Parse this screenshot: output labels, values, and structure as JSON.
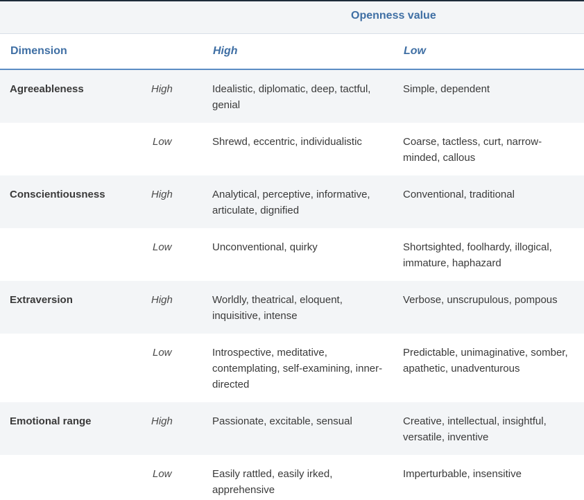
{
  "table": {
    "group_header": "Openness value",
    "columns": {
      "dimension": "Dimension",
      "high": "High",
      "low": "Low"
    },
    "rows": [
      {
        "dimension": "Agreeableness",
        "level": "High",
        "high": "Idealistic, diplomatic, deep, tactful, genial",
        "low": "Simple, dependent"
      },
      {
        "dimension": "",
        "level": "Low",
        "high": "Shrewd, eccentric, individualistic",
        "low": "Coarse, tactless, curt, narrow-minded, callous"
      },
      {
        "dimension": "Conscientiousness",
        "level": "High",
        "high": "Analytical, perceptive, informative, articulate, dignified",
        "low": "Conventional, traditional"
      },
      {
        "dimension": "",
        "level": "Low",
        "high": "Unconventional, quirky",
        "low": "Shortsighted, foolhardy, illogical, immature, haphazard"
      },
      {
        "dimension": "Extraversion",
        "level": "High",
        "high": "Worldly, theatrical, eloquent, inquisitive, intense",
        "low": "Verbose, unscrupulous, pompous"
      },
      {
        "dimension": "",
        "level": "Low",
        "high": "Introspective, meditative, contemplating, self-examining, inner-directed",
        "low": "Predictable, unimaginative, somber, apathetic, unadventurous"
      },
      {
        "dimension": "Emotional range",
        "level": "High",
        "high": "Passionate, excitable, sensual",
        "low": "Creative, intellectual, insightful, versatile, inventive"
      },
      {
        "dimension": "",
        "level": "Low",
        "high": "Easily rattled, easily irked, apprehensive",
        "low": "Imperturbable, insensitive"
      }
    ]
  }
}
